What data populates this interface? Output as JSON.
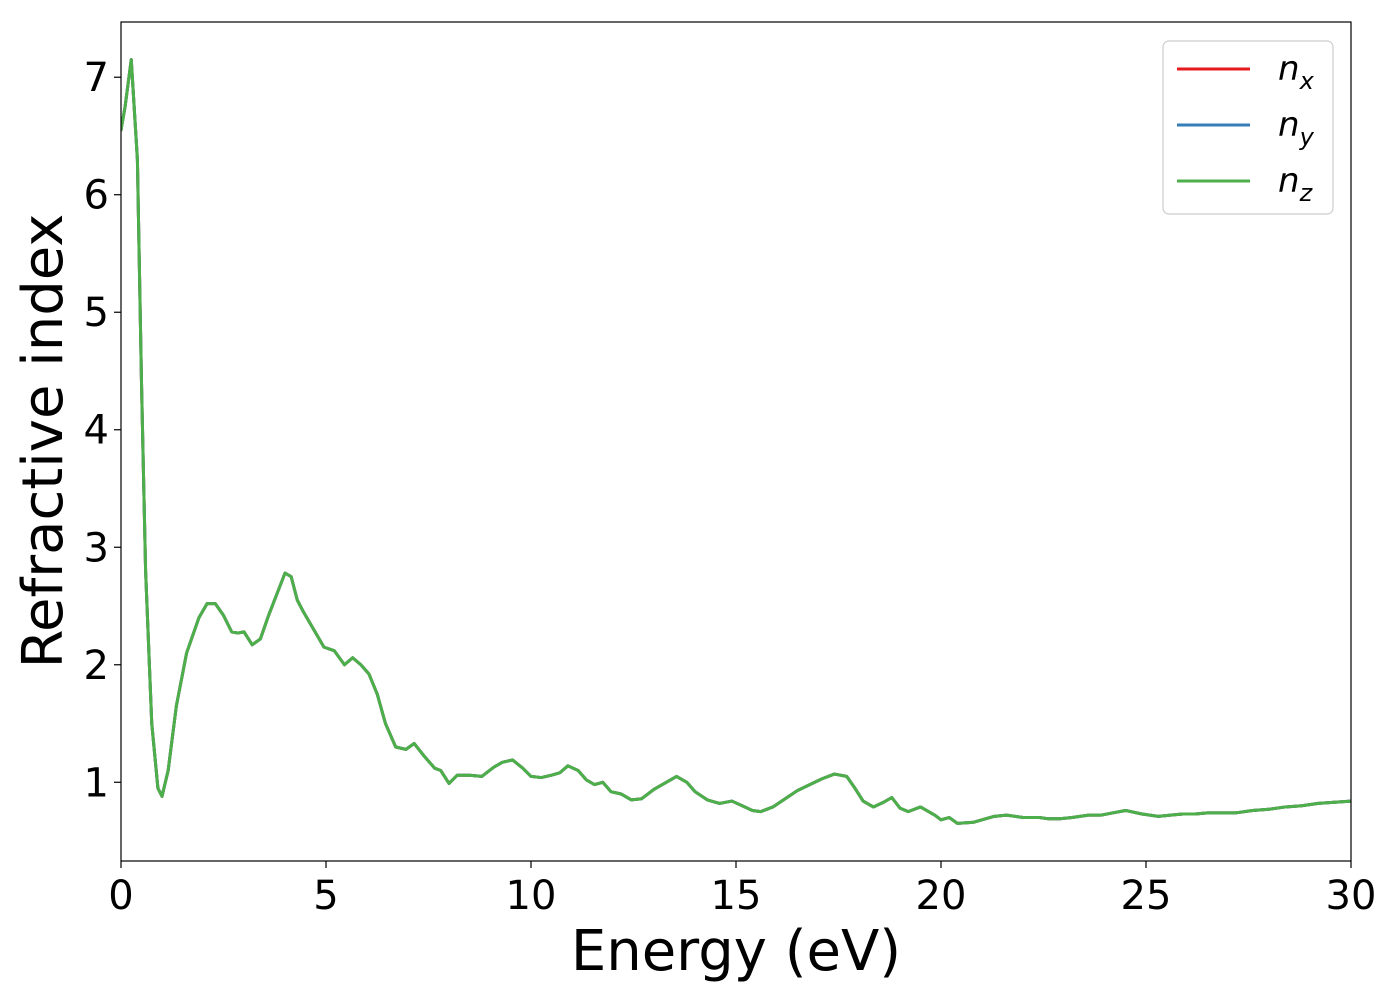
{
  "chart_data": {
    "type": "line",
    "xlabel": "Energy (eV)",
    "ylabel": "Refractive index",
    "xlim": [
      0,
      30
    ],
    "ylim": [
      0.33,
      7.47
    ],
    "xticks": [
      0,
      5,
      10,
      15,
      20,
      25,
      30
    ],
    "xtick_labels": [
      "0",
      "5",
      "10",
      "15",
      "20",
      "25",
      "30"
    ],
    "yticks": [
      1,
      2,
      3,
      4,
      5,
      6,
      7
    ],
    "ytick_labels": [
      "1",
      "2",
      "3",
      "4",
      "5",
      "6",
      "7"
    ],
    "grid": false,
    "legend_position": "top-right",
    "legend": [
      {
        "base": "n",
        "sub": "x",
        "color": "#e41a1c"
      },
      {
        "base": "n",
        "sub": "y",
        "color": "#377eb8"
      },
      {
        "base": "n",
        "sub": "z",
        "color": "#4daf4a"
      }
    ],
    "x": [
      0.0,
      0.1,
      0.25,
      0.4,
      0.5,
      0.6,
      0.75,
      0.9,
      1.0,
      1.15,
      1.35,
      1.6,
      1.9,
      2.1,
      2.3,
      2.5,
      2.7,
      2.85,
      3.0,
      3.2,
      3.4,
      3.6,
      3.8,
      4.0,
      4.15,
      4.3,
      4.45,
      4.7,
      4.95,
      5.2,
      5.45,
      5.65,
      5.85,
      6.05,
      6.25,
      6.45,
      6.7,
      6.95,
      7.15,
      7.4,
      7.65,
      7.8,
      8.0,
      8.2,
      8.5,
      8.8,
      9.1,
      9.3,
      9.55,
      9.8,
      10.0,
      10.25,
      10.5,
      10.7,
      10.9,
      11.15,
      11.35,
      11.55,
      11.75,
      11.95,
      12.2,
      12.45,
      12.7,
      13.0,
      13.3,
      13.55,
      13.8,
      14.0,
      14.3,
      14.6,
      14.9,
      15.15,
      15.4,
      15.6,
      15.9,
      16.2,
      16.5,
      16.8,
      17.1,
      17.4,
      17.7,
      17.9,
      18.1,
      18.35,
      18.6,
      18.8,
      19.0,
      19.2,
      19.5,
      19.85,
      20.0,
      20.2,
      20.4,
      20.8,
      21.0,
      21.3,
      21.6,
      22.0,
      22.4,
      22.6,
      22.9,
      23.2,
      23.6,
      23.9,
      24.2,
      24.5,
      24.9,
      25.3,
      25.6,
      25.9,
      26.2,
      26.5,
      26.9,
      27.2,
      27.6,
      28.0,
      28.4,
      28.8,
      29.2,
      29.6,
      30.0
    ],
    "series": [
      {
        "name": "n_x",
        "values": [
          6.55,
          6.75,
          7.15,
          6.3,
          4.4,
          2.8,
          1.5,
          0.95,
          0.88,
          1.1,
          1.65,
          2.1,
          2.4,
          2.52,
          2.52,
          2.42,
          2.28,
          2.27,
          2.28,
          2.17,
          2.22,
          2.42,
          2.6,
          2.78,
          2.75,
          2.55,
          2.45,
          2.3,
          2.15,
          2.12,
          2.0,
          2.06,
          2.0,
          1.92,
          1.75,
          1.5,
          1.3,
          1.28,
          1.33,
          1.22,
          1.12,
          1.1,
          0.99,
          1.06,
          1.06,
          1.05,
          1.13,
          1.17,
          1.19,
          1.12,
          1.05,
          1.04,
          1.06,
          1.08,
          1.14,
          1.1,
          1.02,
          0.98,
          1.0,
          0.92,
          0.9,
          0.85,
          0.86,
          0.94,
          1.0,
          1.05,
          1.0,
          0.92,
          0.85,
          0.82,
          0.84,
          0.8,
          0.76,
          0.75,
          0.79,
          0.86,
          0.93,
          0.98,
          1.03,
          1.07,
          1.05,
          0.95,
          0.84,
          0.79,
          0.83,
          0.87,
          0.78,
          0.75,
          0.79,
          0.72,
          0.68,
          0.7,
          0.65,
          0.66,
          0.68,
          0.71,
          0.72,
          0.7,
          0.7,
          0.69,
          0.69,
          0.7,
          0.72,
          0.72,
          0.74,
          0.76,
          0.73,
          0.71,
          0.72,
          0.73,
          0.73,
          0.74,
          0.74,
          0.74,
          0.76,
          0.77,
          0.79,
          0.8,
          0.82,
          0.83,
          0.84
        ]
      },
      {
        "name": "n_y",
        "values": [
          6.55,
          6.75,
          7.15,
          6.3,
          4.4,
          2.8,
          1.5,
          0.95,
          0.88,
          1.1,
          1.65,
          2.1,
          2.4,
          2.52,
          2.52,
          2.42,
          2.28,
          2.27,
          2.28,
          2.17,
          2.22,
          2.42,
          2.6,
          2.78,
          2.75,
          2.55,
          2.45,
          2.3,
          2.15,
          2.12,
          2.0,
          2.06,
          2.0,
          1.92,
          1.75,
          1.5,
          1.3,
          1.28,
          1.33,
          1.22,
          1.12,
          1.1,
          0.99,
          1.06,
          1.06,
          1.05,
          1.13,
          1.17,
          1.19,
          1.12,
          1.05,
          1.04,
          1.06,
          1.08,
          1.14,
          1.1,
          1.02,
          0.98,
          1.0,
          0.92,
          0.9,
          0.85,
          0.86,
          0.94,
          1.0,
          1.05,
          1.0,
          0.92,
          0.85,
          0.82,
          0.84,
          0.8,
          0.76,
          0.75,
          0.79,
          0.86,
          0.93,
          0.98,
          1.03,
          1.07,
          1.05,
          0.95,
          0.84,
          0.79,
          0.83,
          0.87,
          0.78,
          0.75,
          0.79,
          0.72,
          0.68,
          0.7,
          0.65,
          0.66,
          0.68,
          0.71,
          0.72,
          0.7,
          0.7,
          0.69,
          0.69,
          0.7,
          0.72,
          0.72,
          0.74,
          0.76,
          0.73,
          0.71,
          0.72,
          0.73,
          0.73,
          0.74,
          0.74,
          0.74,
          0.76,
          0.77,
          0.79,
          0.8,
          0.82,
          0.83,
          0.84
        ]
      },
      {
        "name": "n_z",
        "values": [
          6.55,
          6.75,
          7.15,
          6.3,
          4.4,
          2.8,
          1.5,
          0.95,
          0.88,
          1.1,
          1.65,
          2.1,
          2.4,
          2.52,
          2.52,
          2.42,
          2.28,
          2.27,
          2.28,
          2.17,
          2.22,
          2.42,
          2.6,
          2.78,
          2.75,
          2.55,
          2.45,
          2.3,
          2.15,
          2.12,
          2.0,
          2.06,
          2.0,
          1.92,
          1.75,
          1.5,
          1.3,
          1.28,
          1.33,
          1.22,
          1.12,
          1.1,
          0.99,
          1.06,
          1.06,
          1.05,
          1.13,
          1.17,
          1.19,
          1.12,
          1.05,
          1.04,
          1.06,
          1.08,
          1.14,
          1.1,
          1.02,
          0.98,
          1.0,
          0.92,
          0.9,
          0.85,
          0.86,
          0.94,
          1.0,
          1.05,
          1.0,
          0.92,
          0.85,
          0.82,
          0.84,
          0.8,
          0.76,
          0.75,
          0.79,
          0.86,
          0.93,
          0.98,
          1.03,
          1.07,
          1.05,
          0.95,
          0.84,
          0.79,
          0.83,
          0.87,
          0.78,
          0.75,
          0.79,
          0.72,
          0.68,
          0.7,
          0.65,
          0.66,
          0.68,
          0.71,
          0.72,
          0.7,
          0.7,
          0.69,
          0.69,
          0.7,
          0.72,
          0.72,
          0.74,
          0.76,
          0.73,
          0.71,
          0.72,
          0.73,
          0.73,
          0.74,
          0.74,
          0.74,
          0.76,
          0.77,
          0.79,
          0.8,
          0.82,
          0.83,
          0.84
        ]
      }
    ]
  }
}
